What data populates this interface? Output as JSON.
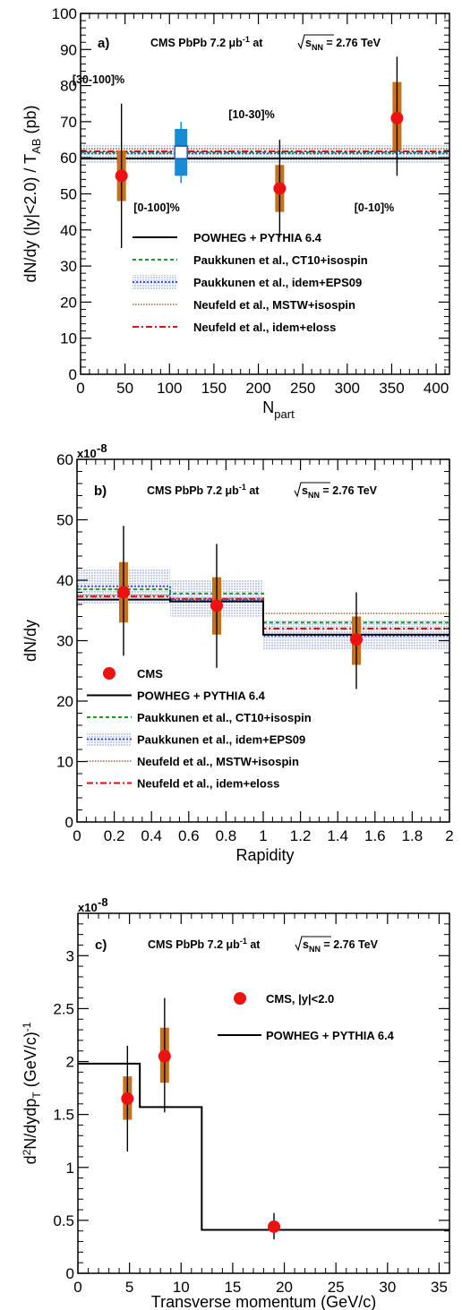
{
  "chart_data": [
    {
      "panel": "a)",
      "type": "scatter",
      "header": "CMS PbPb 7.2 μb⁻¹ at √sNN = 2.76 TeV",
      "xlabel": "Npart",
      "ylabel": "dN/dy (|y|<2.0) / TAB (pb)",
      "xlim": [
        0,
        415
      ],
      "ylim": [
        0,
        100
      ],
      "xticks": [
        "0",
        "50",
        "100",
        "150",
        "200",
        "250",
        "300",
        "350",
        "400"
      ],
      "yticks": [
        "0",
        "10",
        "20",
        "30",
        "40",
        "50",
        "60",
        "70",
        "80",
        "90",
        "100"
      ],
      "points": [
        {
          "x": 46,
          "y": 55,
          "stat": [
            35,
            75
          ],
          "syst": [
            48,
            62
          ],
          "label": "[30-100]%"
        },
        {
          "x": 113,
          "y": 61.5,
          "stat": [
            53,
            70
          ],
          "syst": [
            55,
            68
          ],
          "label": "[0-100]%",
          "marker": "open-square"
        },
        {
          "x": 224,
          "y": 51.5,
          "stat": [
            38,
            65
          ],
          "syst": [
            45,
            58
          ],
          "label": "[10-30]%"
        },
        {
          "x": 356,
          "y": 71,
          "stat": [
            55,
            88
          ],
          "syst": [
            62,
            81
          ],
          "label": "[0-10]%"
        }
      ],
      "bands": {
        "powheg": 59.8,
        "paukkunen_ct10": 61.5,
        "paukkunen_eps09": 61.2,
        "paukkunen_eps09_range": [
          58.5,
          63.8
        ],
        "neufeld_mstw": 62.5,
        "neufeld_eloss": 61.8
      },
      "legend": [
        {
          "label": "POWHEG + PYTHIA 6.4",
          "style": "solid",
          "color": "#000000"
        },
        {
          "label": "Paukkunen et al., CT10+isospin",
          "style": "dashed",
          "color": "#1a9e2a"
        },
        {
          "label": "Paukkunen et al., idem+EPS09",
          "style": "band",
          "color": "#3355cc"
        },
        {
          "label": "Neufeld et al., MSTW+isospin",
          "style": "dotted",
          "color": "#8a4a10"
        },
        {
          "label": "Neufeld et al., idem+eloss",
          "style": "dashdot",
          "color": "#dd1111"
        }
      ]
    },
    {
      "panel": "b)",
      "type": "scatter",
      "header": "CMS PbPb 7.2 μb⁻¹ at √sNN = 2.76 TeV",
      "xlabel": "Rapidity",
      "ylabel": "dN/dy",
      "yscale": "x10-8",
      "xlim": [
        0,
        2
      ],
      "ylim": [
        0,
        60
      ],
      "xticks": [
        "0",
        "0.2",
        "0.4",
        "0.6",
        "0.8",
        "1",
        "1.2",
        "1.4",
        "1.6",
        "1.8",
        "2"
      ],
      "yticks": [
        "0",
        "10",
        "20",
        "30",
        "40",
        "50",
        "60"
      ],
      "points": [
        {
          "x": 0.25,
          "y": 38,
          "stat": [
            27.5,
            49
          ],
          "syst": [
            33,
            43
          ]
        },
        {
          "x": 0.75,
          "y": 35.8,
          "stat": [
            25.5,
            46
          ],
          "syst": [
            31,
            40.5
          ]
        },
        {
          "x": 1.5,
          "y": 30.2,
          "stat": [
            22,
            38
          ],
          "syst": [
            26,
            34
          ]
        }
      ],
      "bins": [
        0,
        0.5,
        1.0,
        2.0
      ],
      "theory": {
        "powheg": [
          36.8,
          36.5,
          31.0
        ],
        "paukkunen_ct10": [
          38.5,
          37.8,
          33.0
        ],
        "paukkunen_eps09": [
          39.0,
          36.8,
          30.8
        ],
        "paukkunen_eps09_lo": [
          36.0,
          34.0,
          28.5
        ],
        "paukkunen_eps09_hi": [
          42.0,
          40.0,
          33.5
        ],
        "neufeld_mstw": [
          37.5,
          37.0,
          34.5
        ],
        "neufeld_eloss": [
          37.3,
          36.9,
          32.0
        ]
      },
      "legend": [
        {
          "label": "CMS",
          "style": "marker",
          "color": "#ee1111"
        },
        {
          "label": "POWHEG + PYTHIA 6.4",
          "style": "solid",
          "color": "#000000"
        },
        {
          "label": "Paukkunen et al., CT10+isospin",
          "style": "dashed",
          "color": "#1a9e2a"
        },
        {
          "label": "Paukkunen et al., idem+EPS09",
          "style": "band",
          "color": "#3355cc"
        },
        {
          "label": "Neufeld et al., MSTW+isospin",
          "style": "dotted",
          "color": "#8a4a10"
        },
        {
          "label": "Neufeld et al., idem+eloss",
          "style": "dashdot",
          "color": "#dd1111"
        }
      ]
    },
    {
      "panel": "c)",
      "type": "scatter",
      "header": "CMS PbPb 7.2 μb⁻¹ at √sNN = 2.76 TeV",
      "xlabel": "Transverse momentum (GeV/c)",
      "ylabel": "d²N/dydpT (GeV/c)⁻¹",
      "yscale": "x10-8",
      "xlim": [
        0,
        36
      ],
      "ylim": [
        0,
        3.4
      ],
      "xticks": [
        "0",
        "5",
        "10",
        "15",
        "20",
        "25",
        "30",
        "35"
      ],
      "yticks": [
        "0",
        "0.5",
        "1",
        "1.5",
        "2",
        "2.5",
        "3"
      ],
      "points": [
        {
          "x": 4.8,
          "y": 1.65,
          "stat": [
            1.15,
            2.15
          ],
          "syst": [
            1.45,
            1.86
          ]
        },
        {
          "x": 8.4,
          "y": 2.05,
          "stat": [
            1.52,
            2.6
          ],
          "syst": [
            1.8,
            2.32
          ]
        },
        {
          "x": 19,
          "y": 0.44,
          "stat": [
            0.32,
            0.57
          ],
          "syst": [
            0.41,
            0.47
          ]
        }
      ],
      "bins": [
        0,
        6,
        12,
        36
      ],
      "theory": {
        "powheg": [
          1.98,
          1.57,
          0.41
        ]
      },
      "legend": [
        {
          "label": "CMS, |y|<2.0",
          "style": "marker",
          "color": "#ee1111"
        },
        {
          "label": "POWHEG + PYTHIA 6.4",
          "style": "solid",
          "color": "#000000"
        }
      ]
    }
  ]
}
